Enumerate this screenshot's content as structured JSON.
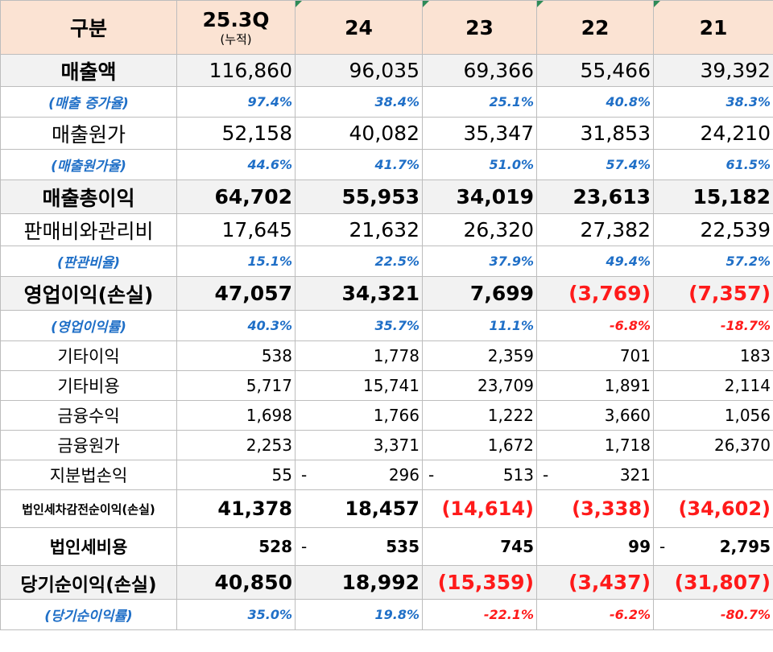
{
  "header": {
    "label": "구분",
    "periods": [
      {
        "year": "25.3Q",
        "note": "(누적)"
      },
      {
        "year": "24",
        "note": ""
      },
      {
        "year": "23",
        "note": ""
      },
      {
        "year": "22",
        "note": ""
      },
      {
        "year": "21",
        "note": ""
      }
    ]
  },
  "rows": [
    {
      "label": "매출액",
      "values": [
        "116,860",
        "96,035",
        "69,366",
        "55,466",
        "39,392"
      ]
    },
    {
      "label": "(매출 증가율)",
      "values": [
        "97.4%",
        "38.4%",
        "25.1%",
        "40.8%",
        "38.3%"
      ]
    },
    {
      "label": "매출원가",
      "values": [
        "52,158",
        "40,082",
        "35,347",
        "31,853",
        "24,210"
      ]
    },
    {
      "label": "(매출원가율)",
      "values": [
        "44.6%",
        "41.7%",
        "51.0%",
        "57.4%",
        "61.5%"
      ]
    },
    {
      "label": "매출총이익",
      "values": [
        "64,702",
        "55,953",
        "34,019",
        "23,613",
        "15,182"
      ]
    },
    {
      "label": "판매비와관리비",
      "values": [
        "17,645",
        "21,632",
        "26,320",
        "27,382",
        "22,539"
      ]
    },
    {
      "label": "(판관비율)",
      "values": [
        "15.1%",
        "22.5%",
        "37.9%",
        "49.4%",
        "57.2%"
      ]
    },
    {
      "label": "영업이익(손실)",
      "values": [
        "47,057",
        "34,321",
        "7,699",
        "(3,769)",
        "(7,357)"
      ]
    },
    {
      "label": "(영업이익률)",
      "values": [
        "40.3%",
        "35.7%",
        "11.1%",
        "-6.8%",
        "-18.7%"
      ]
    },
    {
      "label": "기타이익",
      "values": [
        "538",
        "1,778",
        "2,359",
        "701",
        "183"
      ]
    },
    {
      "label": "기타비용",
      "values": [
        "5,717",
        "15,741",
        "23,709",
        "1,891",
        "2,114"
      ]
    },
    {
      "label": "금융수익",
      "values": [
        "1,698",
        "1,766",
        "1,222",
        "3,660",
        "1,056"
      ]
    },
    {
      "label": "금융원가",
      "values": [
        "2,253",
        "3,371",
        "1,672",
        "1,718",
        "26,370"
      ]
    },
    {
      "label": "지분법손익",
      "values": [
        "55",
        "296",
        "513",
        "321",
        ""
      ],
      "dashes": [
        "",
        "-",
        "-",
        "-",
        ""
      ]
    },
    {
      "label": "법인세차감전순이익(손실)",
      "values": [
        "41,378",
        "18,457",
        "(14,614)",
        "(3,338)",
        "(34,602)"
      ]
    },
    {
      "label": "법인세비용",
      "values": [
        "528",
        "535",
        "745",
        "99",
        "2,795"
      ],
      "dashes": [
        "",
        "-",
        "",
        "",
        "-"
      ]
    },
    {
      "label": "당기순이익(손실)",
      "values": [
        "40,850",
        "18,992",
        "(15,359)",
        "(3,437)",
        "(31,807)"
      ]
    },
    {
      "label": "(당기순이익률)",
      "values": [
        "35.0%",
        "19.8%",
        "-22.1%",
        "-6.2%",
        "-80.7%"
      ]
    }
  ],
  "colors": {
    "header_bg": "#fbe3d3",
    "shade_bg": "#f2f2f2",
    "percent_blue": "#1f6fc7",
    "negative_red": "#ff1a1a"
  }
}
